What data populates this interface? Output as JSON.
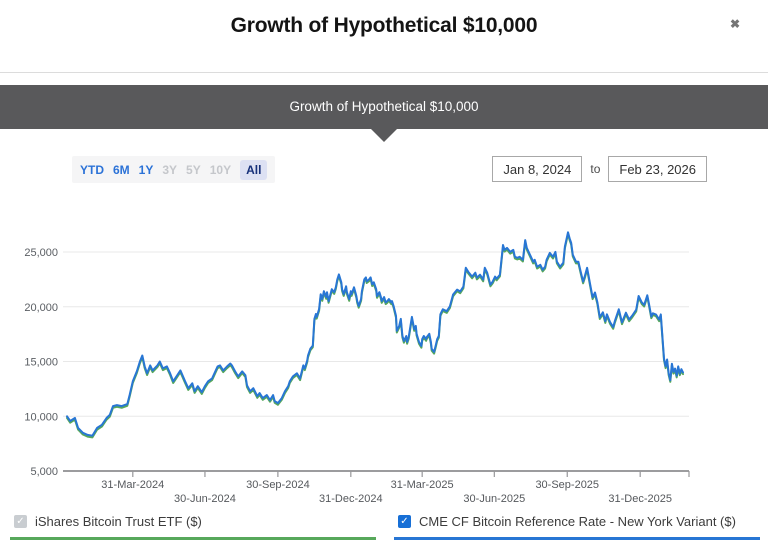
{
  "dialog": {
    "title": "Growth of Hypothetical $10,000",
    "close_glyph": "✖"
  },
  "banner": {
    "text": "Growth of Hypothetical $10,000"
  },
  "controls": {
    "range_buttons": [
      {
        "label": "YTD",
        "state": "enabled"
      },
      {
        "label": "6M",
        "state": "enabled"
      },
      {
        "label": "1Y",
        "state": "enabled"
      },
      {
        "label": "3Y",
        "state": "disabled"
      },
      {
        "label": "5Y",
        "state": "disabled"
      },
      {
        "label": "10Y",
        "state": "disabled"
      },
      {
        "label": "All",
        "state": "selected"
      }
    ],
    "date_from": "Jan 8, 2024",
    "to_label": "to",
    "date_to": "Feb 23, 2026"
  },
  "legend": [
    {
      "label": "iShares Bitcoin Trust ETF ($)",
      "color": "#57a85b",
      "checked": true,
      "disabled": true
    },
    {
      "label": "CME CF Bitcoin Reference Rate - New York Variant ($)",
      "color": "#2876d4",
      "checked": true,
      "disabled": false
    }
  ],
  "chart_data": {
    "type": "line",
    "title": "Growth of Hypothetical $10,000",
    "xlabel": "",
    "ylabel": "",
    "x_unit": "days since Jan 8, 2024",
    "x_range_dates": [
      "Jan 8, 2024",
      "Feb 23, 2026"
    ],
    "x_range_days": [
      0,
      777
    ],
    "ylim": [
      5000,
      27500
    ],
    "grid": true,
    "legend_position": "bottom",
    "y_ticks": [
      {
        "value": 5000,
        "label": "5,000"
      },
      {
        "value": 10000,
        "label": "10,000"
      },
      {
        "value": 15000,
        "label": "15,000"
      },
      {
        "value": 20000,
        "label": "20,000"
      },
      {
        "value": 25000,
        "label": "25,000"
      }
    ],
    "x_ticks": [
      {
        "day": 83,
        "label": "31-Mar-2024",
        "row": 1
      },
      {
        "day": 174,
        "label": "30-Jun-2024",
        "row": 2
      },
      {
        "day": 266,
        "label": "30-Sep-2024",
        "row": 1
      },
      {
        "day": 358,
        "label": "31-Dec-2024",
        "row": 2
      },
      {
        "day": 448,
        "label": "31-Mar-2025",
        "row": 1
      },
      {
        "day": 539,
        "label": "30-Jun-2025",
        "row": 2
      },
      {
        "day": 631,
        "label": "30-Sep-2025",
        "row": 1
      },
      {
        "day": 723,
        "label": "31-Dec-2025",
        "row": 2
      }
    ],
    "series": [
      {
        "name": "iShares Bitcoin Trust ETF ($)",
        "color": "#57a85b",
        "points_same_as": 1,
        "note": "overlaps the reference-rate line, drawn behind it"
      },
      {
        "name": "CME CF Bitcoin Reference Rate - New York Variant ($)",
        "color": "#2876d4",
        "points": [
          [
            0,
            10000
          ],
          [
            4,
            9570
          ],
          [
            10,
            9850
          ],
          [
            14,
            8940
          ],
          [
            20,
            8490
          ],
          [
            26,
            8300
          ],
          [
            32,
            8220
          ],
          [
            38,
            8940
          ],
          [
            44,
            9220
          ],
          [
            50,
            9850
          ],
          [
            54,
            10120
          ],
          [
            58,
            10930
          ],
          [
            63,
            11020
          ],
          [
            69,
            10930
          ],
          [
            76,
            11110
          ],
          [
            79,
            11930
          ],
          [
            83,
            13190
          ],
          [
            88,
            14100
          ],
          [
            92,
            15000
          ],
          [
            95,
            15550
          ],
          [
            98,
            14550
          ],
          [
            101,
            13920
          ],
          [
            105,
            14640
          ],
          [
            108,
            14190
          ],
          [
            114,
            14640
          ],
          [
            117,
            15000
          ],
          [
            121,
            14370
          ],
          [
            126,
            14550
          ],
          [
            130,
            13920
          ],
          [
            134,
            13190
          ],
          [
            139,
            13740
          ],
          [
            143,
            14190
          ],
          [
            149,
            13190
          ],
          [
            153,
            12560
          ],
          [
            158,
            13010
          ],
          [
            161,
            12290
          ],
          [
            165,
            12740
          ],
          [
            170,
            12200
          ],
          [
            174,
            12740
          ],
          [
            178,
            13190
          ],
          [
            183,
            13460
          ],
          [
            187,
            14100
          ],
          [
            190,
            14550
          ],
          [
            193,
            14640
          ],
          [
            197,
            14190
          ],
          [
            202,
            14550
          ],
          [
            206,
            14820
          ],
          [
            208,
            14640
          ],
          [
            212,
            14100
          ],
          [
            216,
            13640
          ],
          [
            221,
            14100
          ],
          [
            225,
            13740
          ],
          [
            227,
            12830
          ],
          [
            231,
            12290
          ],
          [
            235,
            12560
          ],
          [
            240,
            11840
          ],
          [
            243,
            12110
          ],
          [
            247,
            11660
          ],
          [
            252,
            11930
          ],
          [
            256,
            11480
          ],
          [
            260,
            11930
          ],
          [
            262,
            11380
          ],
          [
            266,
            11200
          ],
          [
            271,
            11660
          ],
          [
            275,
            12290
          ],
          [
            279,
            12740
          ],
          [
            281,
            13190
          ],
          [
            285,
            13640
          ],
          [
            290,
            13920
          ],
          [
            294,
            13460
          ],
          [
            298,
            14640
          ],
          [
            300,
            14370
          ],
          [
            303,
            15090
          ],
          [
            304,
            15540
          ],
          [
            307,
            16180
          ],
          [
            310,
            16450
          ],
          [
            312,
            18890
          ],
          [
            314,
            19340
          ],
          [
            315,
            19070
          ],
          [
            318,
            19790
          ],
          [
            320,
            21150
          ],
          [
            322,
            20700
          ],
          [
            324,
            21420
          ],
          [
            327,
            20880
          ],
          [
            328,
            21330
          ],
          [
            330,
            20520
          ],
          [
            334,
            21600
          ],
          [
            337,
            21330
          ],
          [
            339,
            21780
          ],
          [
            341,
            22500
          ],
          [
            343,
            22950
          ],
          [
            346,
            22230
          ],
          [
            347,
            21600
          ],
          [
            349,
            21150
          ],
          [
            352,
            21870
          ],
          [
            353,
            21330
          ],
          [
            356,
            20700
          ],
          [
            358,
            21420
          ],
          [
            359,
            21150
          ],
          [
            362,
            21780
          ],
          [
            365,
            20970
          ],
          [
            366,
            20520
          ],
          [
            368,
            20070
          ],
          [
            371,
            20700
          ],
          [
            372,
            21420
          ],
          [
            375,
            22500
          ],
          [
            377,
            22680
          ],
          [
            378,
            22320
          ],
          [
            381,
            22500
          ],
          [
            383,
            22680
          ],
          [
            385,
            22050
          ],
          [
            387,
            22230
          ],
          [
            390,
            21600
          ],
          [
            391,
            20970
          ],
          [
            394,
            21330
          ],
          [
            396,
            20880
          ],
          [
            397,
            20520
          ],
          [
            400,
            20880
          ],
          [
            402,
            20400
          ],
          [
            404,
            20520
          ],
          [
            406,
            20700
          ],
          [
            409,
            20400
          ],
          [
            410,
            20520
          ],
          [
            412,
            20070
          ],
          [
            415,
            19160
          ],
          [
            416,
            17800
          ],
          [
            419,
            18250
          ],
          [
            421,
            18890
          ],
          [
            423,
            17350
          ],
          [
            425,
            16870
          ],
          [
            428,
            17330
          ],
          [
            429,
            16780
          ],
          [
            431,
            17240
          ],
          [
            435,
            19070
          ],
          [
            438,
            17960
          ],
          [
            440,
            18250
          ],
          [
            441,
            17530
          ],
          [
            444,
            16780
          ],
          [
            447,
            16420
          ],
          [
            448,
            17050
          ],
          [
            450,
            17330
          ],
          [
            453,
            17050
          ],
          [
            454,
            17240
          ],
          [
            457,
            17530
          ],
          [
            459,
            16780
          ],
          [
            460,
            16150
          ],
          [
            463,
            15880
          ],
          [
            465,
            16420
          ],
          [
            467,
            17050
          ],
          [
            469,
            17330
          ],
          [
            471,
            19310
          ],
          [
            474,
            19770
          ],
          [
            479,
            19590
          ],
          [
            483,
            20040
          ],
          [
            487,
            21120
          ],
          [
            492,
            21570
          ],
          [
            496,
            21390
          ],
          [
            500,
            21840
          ],
          [
            503,
            23560
          ],
          [
            506,
            23200
          ],
          [
            511,
            22750
          ],
          [
            515,
            23110
          ],
          [
            517,
            22650
          ],
          [
            521,
            22930
          ],
          [
            525,
            22480
          ],
          [
            527,
            23560
          ],
          [
            530,
            23110
          ],
          [
            534,
            22020
          ],
          [
            537,
            22300
          ],
          [
            540,
            22750
          ],
          [
            542,
            22570
          ],
          [
            546,
            22930
          ],
          [
            550,
            25640
          ],
          [
            552,
            25190
          ],
          [
            555,
            25370
          ],
          [
            559,
            25010
          ],
          [
            563,
            25190
          ],
          [
            565,
            24560
          ],
          [
            568,
            24470
          ],
          [
            571,
            24560
          ],
          [
            575,
            24290
          ],
          [
            578,
            26090
          ],
          [
            580,
            25370
          ],
          [
            584,
            24740
          ],
          [
            588,
            24110
          ],
          [
            590,
            24290
          ],
          [
            593,
            23650
          ],
          [
            597,
            23830
          ],
          [
            600,
            23380
          ],
          [
            603,
            23650
          ],
          [
            605,
            24290
          ],
          [
            609,
            24920
          ],
          [
            613,
            24560
          ],
          [
            616,
            25010
          ],
          [
            618,
            24110
          ],
          [
            622,
            23650
          ],
          [
            626,
            24020
          ],
          [
            628,
            25500
          ],
          [
            632,
            26800
          ],
          [
            634,
            26250
          ],
          [
            636,
            25820
          ],
          [
            638,
            24740
          ],
          [
            642,
            24110
          ],
          [
            645,
            24110
          ],
          [
            648,
            23200
          ],
          [
            651,
            22300
          ],
          [
            653,
            22750
          ],
          [
            656,
            23560
          ],
          [
            660,
            22020
          ],
          [
            663,
            20850
          ],
          [
            666,
            21300
          ],
          [
            669,
            20400
          ],
          [
            672,
            19040
          ],
          [
            676,
            19490
          ],
          [
            679,
            18680
          ],
          [
            681,
            19310
          ],
          [
            685,
            18590
          ],
          [
            689,
            18140
          ],
          [
            691,
            18680
          ],
          [
            696,
            19770
          ],
          [
            700,
            18570
          ],
          [
            705,
            19460
          ],
          [
            709,
            18840
          ],
          [
            713,
            19200
          ],
          [
            718,
            19730
          ],
          [
            721,
            20980
          ],
          [
            725,
            20400
          ],
          [
            728,
            20180
          ],
          [
            732,
            21050
          ],
          [
            734,
            20300
          ],
          [
            737,
            19110
          ],
          [
            739,
            19400
          ],
          [
            743,
            19290
          ],
          [
            747,
            18840
          ],
          [
            749,
            19300
          ],
          [
            753,
            15270
          ],
          [
            755,
            14550
          ],
          [
            757,
            15180
          ],
          [
            759,
            13900
          ],
          [
            761,
            13300
          ],
          [
            763,
            14800
          ],
          [
            765,
            14050
          ],
          [
            767,
            14350
          ],
          [
            769,
            13700
          ],
          [
            771,
            14550
          ],
          [
            773,
            13900
          ],
          [
            775,
            14300
          ],
          [
            777,
            14000
          ]
        ]
      }
    ]
  }
}
